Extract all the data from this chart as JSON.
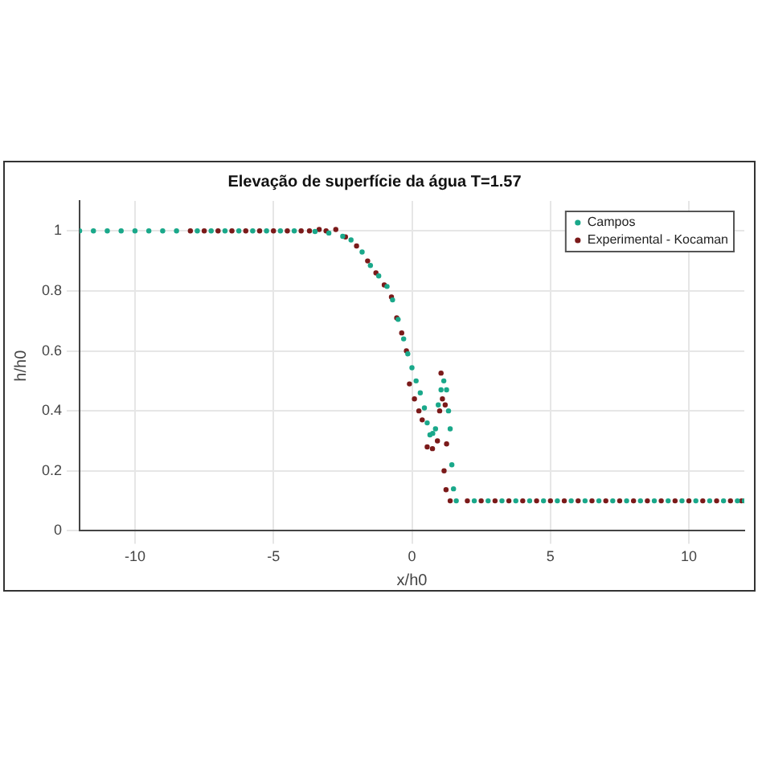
{
  "chart_data": {
    "type": "scatter",
    "title": "Elevação de superfície da água T=1.57",
    "xlabel": "x/h0",
    "ylabel": "h/h0",
    "xlim": [
      -12,
      12
    ],
    "xticks": [
      -10,
      -5,
      0,
      5,
      10
    ],
    "ylim": [
      0,
      1.1
    ],
    "yticks": [
      0,
      0.2,
      0.4,
      0.6,
      0.8,
      1
    ],
    "grid": true,
    "legend": "top right",
    "marker": "circle",
    "series": [
      {
        "name": "Campos",
        "color": "#1aa88a",
        "x": [
          -12,
          -11.5,
          -11,
          -10.5,
          -10,
          -9.5,
          -9,
          -8.5,
          -7.75,
          -7.25,
          -6.75,
          -6.25,
          -5.75,
          -5.25,
          -4.75,
          -4.25,
          -3.5,
          -3,
          -2.5,
          -2.2,
          -1.8,
          -1.5,
          -1.2,
          -0.9,
          -0.7,
          -0.5,
          -0.3,
          -0.15,
          0,
          0.15,
          0.3,
          0.45,
          0.55,
          0.65,
          0.75,
          0.85,
          0.95,
          1.05,
          1.15,
          1.25,
          1.32,
          1.38,
          1.44,
          1.5,
          1.6,
          2.25,
          2.75,
          3.25,
          3.75,
          4.25,
          4.75,
          5.25,
          5.75,
          6.25,
          6.75,
          7.25,
          7.75,
          8.25,
          8.75,
          9.25,
          9.75,
          10.25,
          10.75,
          11.25,
          11.75,
          12
        ],
        "values": [
          1,
          1,
          1,
          1,
          1,
          1,
          1,
          1,
          1,
          1,
          1,
          1,
          1,
          1,
          1,
          1,
          0.998,
          0.993,
          0.982,
          0.97,
          0.93,
          0.885,
          0.85,
          0.815,
          0.77,
          0.705,
          0.64,
          0.59,
          0.544,
          0.5,
          0.46,
          0.41,
          0.36,
          0.32,
          0.325,
          0.34,
          0.42,
          0.47,
          0.5,
          0.47,
          0.4,
          0.34,
          0.22,
          0.14,
          0.1,
          0.1,
          0.1,
          0.1,
          0.1,
          0.1,
          0.1,
          0.1,
          0.1,
          0.1,
          0.1,
          0.1,
          0.1,
          0.1,
          0.1,
          0.1,
          0.1,
          0.1,
          0.1,
          0.1,
          0.1,
          0.1
        ]
      },
      {
        "name": "Experimental - Kocaman",
        "color": "#7b1a1a",
        "x": [
          -8,
          -7.5,
          -7,
          -6.5,
          -6,
          -5.5,
          -5,
          -4.5,
          -4,
          -3.7,
          -3.35,
          -3.1,
          -2.75,
          -2.4,
          -2,
          -1.6,
          -1.3,
          -1,
          -0.74,
          -0.55,
          -0.37,
          -0.2,
          -0.09,
          0.09,
          0.25,
          0.37,
          0.55,
          0.74,
          0.92,
          1,
          1.05,
          1.1,
          1.2,
          1.25,
          1.16,
          1.23,
          1.38,
          2,
          2.5,
          3,
          3.5,
          4,
          4.5,
          5,
          5.5,
          6,
          6.5,
          7,
          7.5,
          8,
          8.5,
          9,
          9.5,
          10,
          10.5,
          11,
          11.5,
          11.9
        ],
        "values": [
          1,
          1,
          1,
          1,
          1,
          1,
          1,
          1,
          1,
          1,
          1.005,
          1,
          1.005,
          0.98,
          0.95,
          0.9,
          0.86,
          0.82,
          0.78,
          0.71,
          0.66,
          0.6,
          0.49,
          0.44,
          0.4,
          0.37,
          0.28,
          0.274,
          0.3,
          0.4,
          0.526,
          0.44,
          0.42,
          0.29,
          0.2,
          0.137,
          0.1,
          0.1,
          0.1,
          0.1,
          0.1,
          0.1,
          0.1,
          0.1,
          0.1,
          0.1,
          0.1,
          0.1,
          0.1,
          0.1,
          0.1,
          0.1,
          0.1,
          0.1,
          0.1,
          0.1,
          0.1,
          0.1
        ]
      }
    ]
  }
}
